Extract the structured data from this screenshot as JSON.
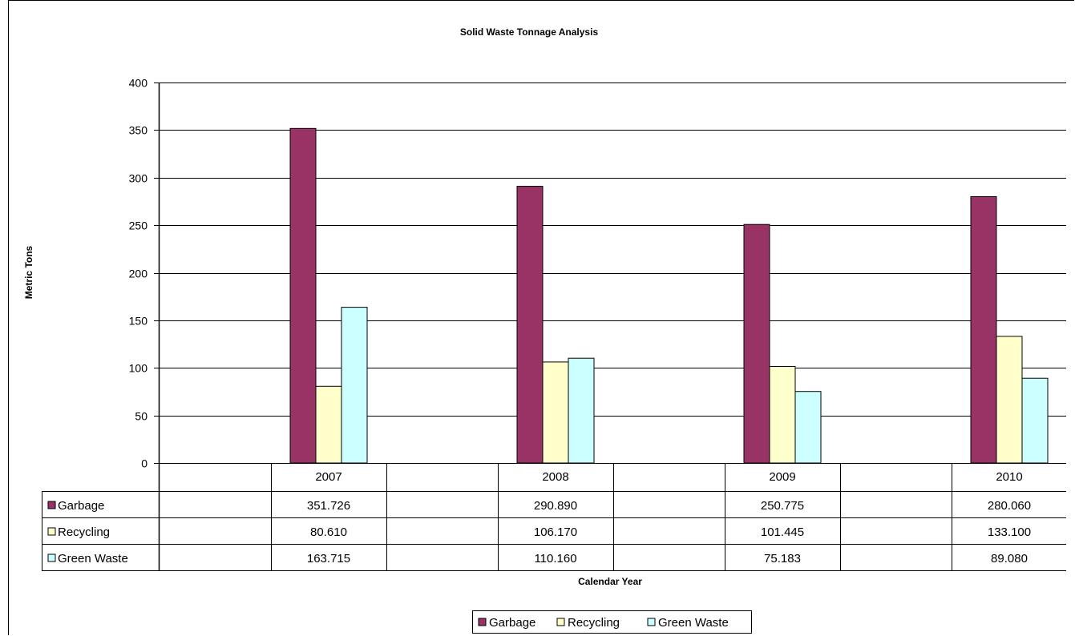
{
  "chart_data": {
    "type": "bar",
    "title": "Solid Waste Tonnage Analysis",
    "xlabel": "Calendar Year",
    "ylabel": "Metric Tons",
    "ylim": [
      0,
      400
    ],
    "yticks": [
      0,
      50,
      100,
      150,
      200,
      250,
      300,
      350,
      400
    ],
    "grid": true,
    "legend_position": "bottom",
    "categories": [
      "2007",
      "2008",
      "2009",
      "2010"
    ],
    "series": [
      {
        "name": "Garbage",
        "color": "#993366",
        "values": [
          351.726,
          290.89,
          250.775,
          280.06
        ],
        "labels": [
          "351.726",
          "290.890",
          "250.775",
          "280.060"
        ]
      },
      {
        "name": "Recycling",
        "color": "#FFFFCC",
        "values": [
          80.61,
          106.17,
          101.445,
          133.1
        ],
        "labels": [
          "80.610",
          "106.170",
          "101.445",
          "133.100"
        ]
      },
      {
        "name": "Green Waste",
        "color": "#CCFFFF",
        "values": [
          163.715,
          110.16,
          75.183,
          89.08
        ],
        "labels": [
          "163.715",
          "110.160",
          "75.183",
          "89.080"
        ]
      }
    ],
    "data_table": true
  }
}
